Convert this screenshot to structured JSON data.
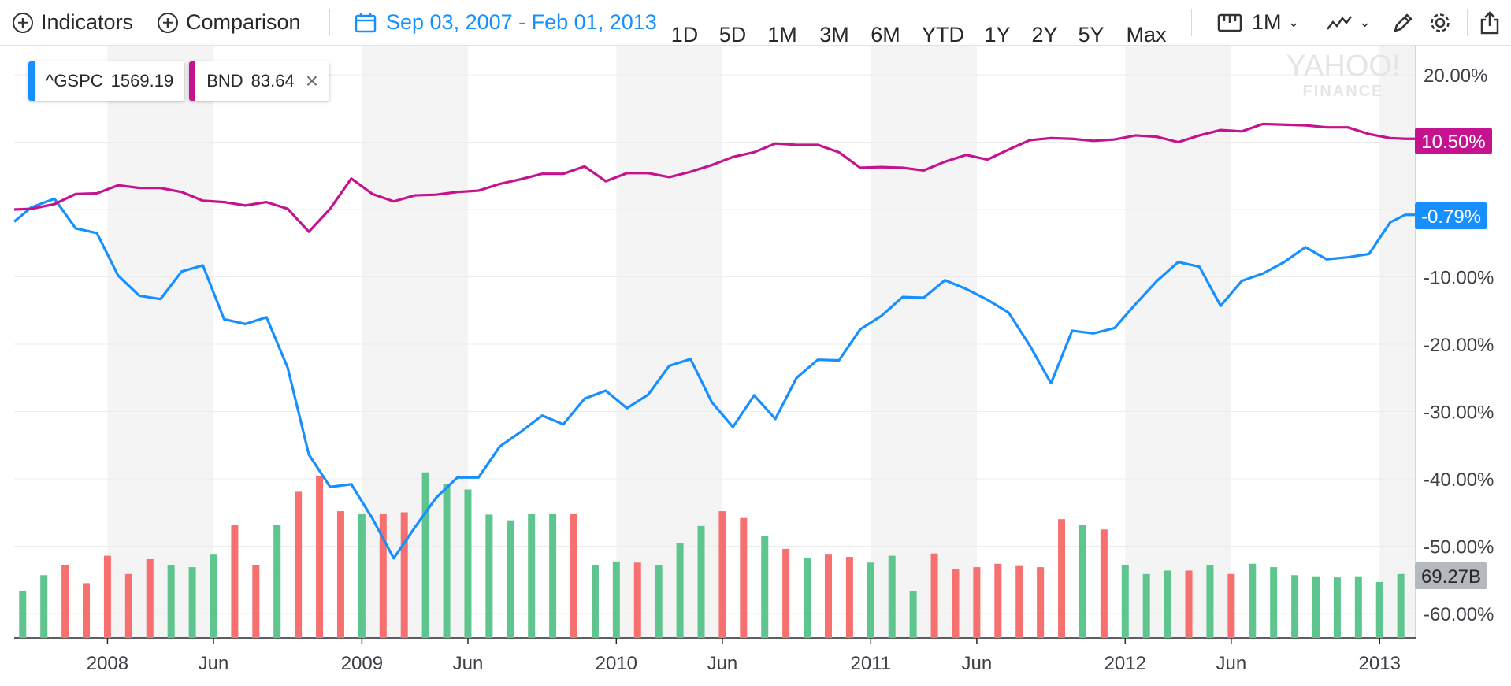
{
  "toolbar": {
    "indicators_label": "Indicators",
    "comparison_label": "Comparison",
    "date_range": "Sep 03, 2007 - Feb 01, 2013",
    "ranges": [
      "1D",
      "5D",
      "1M",
      "3M",
      "6M",
      "YTD",
      "1Y",
      "2Y",
      "5Y",
      "Max"
    ],
    "interval_label": "1M",
    "icons": [
      "plus-circle-icon",
      "calendar-icon",
      "ruler-icon",
      "line-chart-icon",
      "pencil-icon",
      "gear-icon",
      "share-icon"
    ]
  },
  "legend": {
    "items": [
      {
        "symbol": "^GSPC",
        "value": "1569.19",
        "color": "#188fff"
      },
      {
        "symbol": "BND",
        "value": "83.64",
        "color": "#c5138f"
      }
    ]
  },
  "watermark": {
    "line1": "YAHOO!",
    "line2": "FINANCE"
  },
  "badges": {
    "bnd": "10.50%",
    "gspc": "-0.79%",
    "volume": "69.27B"
  },
  "chart_data": {
    "type": "line",
    "title": "",
    "x_labels": [
      "2008",
      "Jun",
      "2009",
      "Jun",
      "2010",
      "Jun",
      "2011",
      "Jun",
      "2012",
      "Jun",
      "2013"
    ],
    "x_label_months": [
      4,
      9,
      16,
      21,
      28,
      33,
      40,
      45,
      52,
      57,
      64
    ],
    "y_ticks": [
      "20.00%",
      "10.00%",
      "0.00%",
      "-10.00%",
      "-20.00%",
      "-30.00%",
      "-40.00%",
      "-50.00%",
      "-60.00%"
    ],
    "y_tick_values": [
      20,
      10,
      0,
      -10,
      -20,
      -30,
      -40,
      -50,
      -60
    ],
    "ylim": [
      -64,
      24
    ],
    "xlim": [
      -0.4,
      65.7
    ],
    "shaded_month_ranges": [
      [
        4,
        9
      ],
      [
        16,
        21
      ],
      [
        28,
        33
      ],
      [
        40,
        45
      ],
      [
        52,
        57
      ],
      [
        64,
        65.7
      ]
    ],
    "series": [
      {
        "name": "^GSPC",
        "color": "#188fff",
        "months": [
          -0.4,
          0.4,
          1.5,
          2.5,
          3.5,
          4.5,
          5.5,
          6.5,
          7.5,
          8.5,
          9.5,
          10.5,
          11.5,
          12.5,
          13.5,
          14.5,
          15.5,
          16.5,
          17.5,
          18.5,
          19.5,
          20.5,
          21.5,
          22.5,
          23.5,
          24.5,
          25.5,
          26.5,
          27.5,
          28.5,
          29.5,
          30.5,
          31.5,
          32.5,
          33.5,
          34.5,
          35.5,
          36.5,
          37.5,
          38.5,
          39.5,
          40.5,
          41.5,
          42.5,
          43.5,
          44.5,
          45.5,
          46.5,
          47.5,
          48.5,
          49.5,
          50.5,
          51.5,
          52.5,
          53.5,
          54.5,
          55.5,
          56.5,
          57.5,
          58.5,
          59.5,
          60.5,
          61.5,
          62.5,
          63.5,
          64.5,
          65.2,
          65.7
        ],
        "values": [
          -1.8,
          0.3,
          1.6,
          -2.8,
          -3.5,
          -9.8,
          -12.8,
          -13.3,
          -9.2,
          -8.3,
          -16.3,
          -17.0,
          -16.0,
          -23.5,
          -36.4,
          -41.2,
          -40.8,
          -45.9,
          -51.8,
          -47.2,
          -42.8,
          -39.8,
          -39.8,
          -35.2,
          -33.0,
          -30.6,
          -31.9,
          -28.1,
          -26.9,
          -29.5,
          -27.5,
          -23.2,
          -22.2,
          -28.6,
          -32.3,
          -27.6,
          -31.1,
          -25.0,
          -22.3,
          -22.4,
          -17.8,
          -15.8,
          -13.0,
          -13.1,
          -10.5,
          -11.8,
          -13.4,
          -15.3,
          -20.2,
          -25.8,
          -18.0,
          -18.4,
          -17.6,
          -14.0,
          -10.6,
          -7.8,
          -8.5,
          -14.3,
          -10.6,
          -9.5,
          -7.8,
          -5.6,
          -7.4,
          -7.1,
          -6.6,
          -1.9,
          -0.79,
          -0.79
        ]
      },
      {
        "name": "BND",
        "color": "#c5138f",
        "months": [
          -0.4,
          0.4,
          1.5,
          2.5,
          3.5,
          4.5,
          5.5,
          6.5,
          7.5,
          8.5,
          9.5,
          10.5,
          11.5,
          12.5,
          13.5,
          14.5,
          15.5,
          16.5,
          17.5,
          18.5,
          19.5,
          20.5,
          21.5,
          22.5,
          23.5,
          24.5,
          25.5,
          26.5,
          27.5,
          28.5,
          29.5,
          30.5,
          31.5,
          32.5,
          33.5,
          34.5,
          35.5,
          36.5,
          37.5,
          38.5,
          39.5,
          40.5,
          41.5,
          42.5,
          43.5,
          44.5,
          45.5,
          46.5,
          47.5,
          48.5,
          49.5,
          50.5,
          51.5,
          52.5,
          53.5,
          54.5,
          55.5,
          56.5,
          57.5,
          58.5,
          59.5,
          60.5,
          61.5,
          62.5,
          63.5,
          64.5,
          65.2,
          65.7
        ],
        "values": [
          0,
          0.1,
          0.8,
          2.3,
          2.4,
          3.6,
          3.2,
          3.2,
          2.6,
          1.3,
          1.1,
          0.6,
          1.1,
          0.1,
          -3.3,
          0.1,
          4.6,
          2.3,
          1.2,
          2.1,
          2.2,
          2.6,
          2.8,
          3.8,
          4.5,
          5.3,
          5.3,
          6.4,
          4.2,
          5.4,
          5.4,
          4.8,
          5.6,
          6.6,
          7.8,
          8.5,
          9.8,
          9.6,
          9.6,
          8.5,
          6.2,
          6.3,
          6.2,
          5.8,
          7.1,
          8.1,
          7.4,
          8.9,
          10.3,
          10.6,
          10.5,
          10.2,
          10.4,
          11.0,
          10.8,
          10.0,
          11.0,
          11.8,
          11.6,
          12.7,
          12.6,
          12.5,
          12.2,
          12.2,
          11.2,
          10.6,
          10.5,
          10.5
        ]
      }
    ],
    "volume": {
      "months": [
        0,
        1,
        2,
        3,
        4,
        5,
        6,
        7,
        8,
        9,
        10,
        11,
        12,
        13,
        14,
        15,
        16,
        17,
        18,
        19,
        20,
        21,
        22,
        23,
        24,
        25,
        26,
        27,
        28,
        29,
        30,
        31,
        32,
        33,
        34,
        35,
        36,
        37,
        38,
        39,
        40,
        41,
        42,
        43,
        44,
        45,
        46,
        47,
        48,
        49,
        50,
        51,
        52,
        53,
        54,
        55,
        56,
        57,
        58,
        59,
        60,
        61,
        62,
        63,
        64,
        65
      ],
      "values": [
        4.1,
        5.5,
        6.4,
        4.8,
        7.2,
        5.6,
        6.9,
        6.4,
        6.2,
        7.3,
        9.9,
        6.4,
        9.9,
        12.8,
        14.2,
        11.1,
        10.9,
        10.9,
        11.0,
        14.5,
        13.5,
        13.0,
        10.8,
        10.3,
        10.9,
        10.9,
        10.9,
        6.4,
        6.7,
        6.6,
        6.4,
        8.3,
        9.8,
        11.1,
        10.5,
        8.9,
        7.8,
        7.0,
        7.3,
        7.1,
        6.6,
        7.2,
        4.1,
        7.4,
        6.0,
        6.2,
        6.5,
        6.3,
        6.2,
        10.4,
        9.9,
        9.5,
        6.4,
        5.6,
        5.9,
        5.9,
        6.4,
        5.6,
        6.5,
        6.2,
        5.5,
        5.4,
        5.3,
        5.4,
        4.9,
        5.6
      ],
      "up": [
        true,
        true,
        false,
        false,
        false,
        false,
        false,
        true,
        true,
        true,
        false,
        false,
        true,
        false,
        false,
        false,
        true,
        false,
        false,
        true,
        true,
        true,
        true,
        true,
        true,
        true,
        false,
        true,
        true,
        false,
        true,
        true,
        true,
        false,
        false,
        true,
        false,
        true,
        false,
        false,
        true,
        true,
        true,
        false,
        false,
        false,
        false,
        false,
        false,
        false,
        true,
        false,
        true,
        true,
        true,
        false,
        true,
        false,
        true,
        true,
        true,
        true,
        true,
        true,
        true,
        true
      ],
      "unit": "B"
    }
  }
}
